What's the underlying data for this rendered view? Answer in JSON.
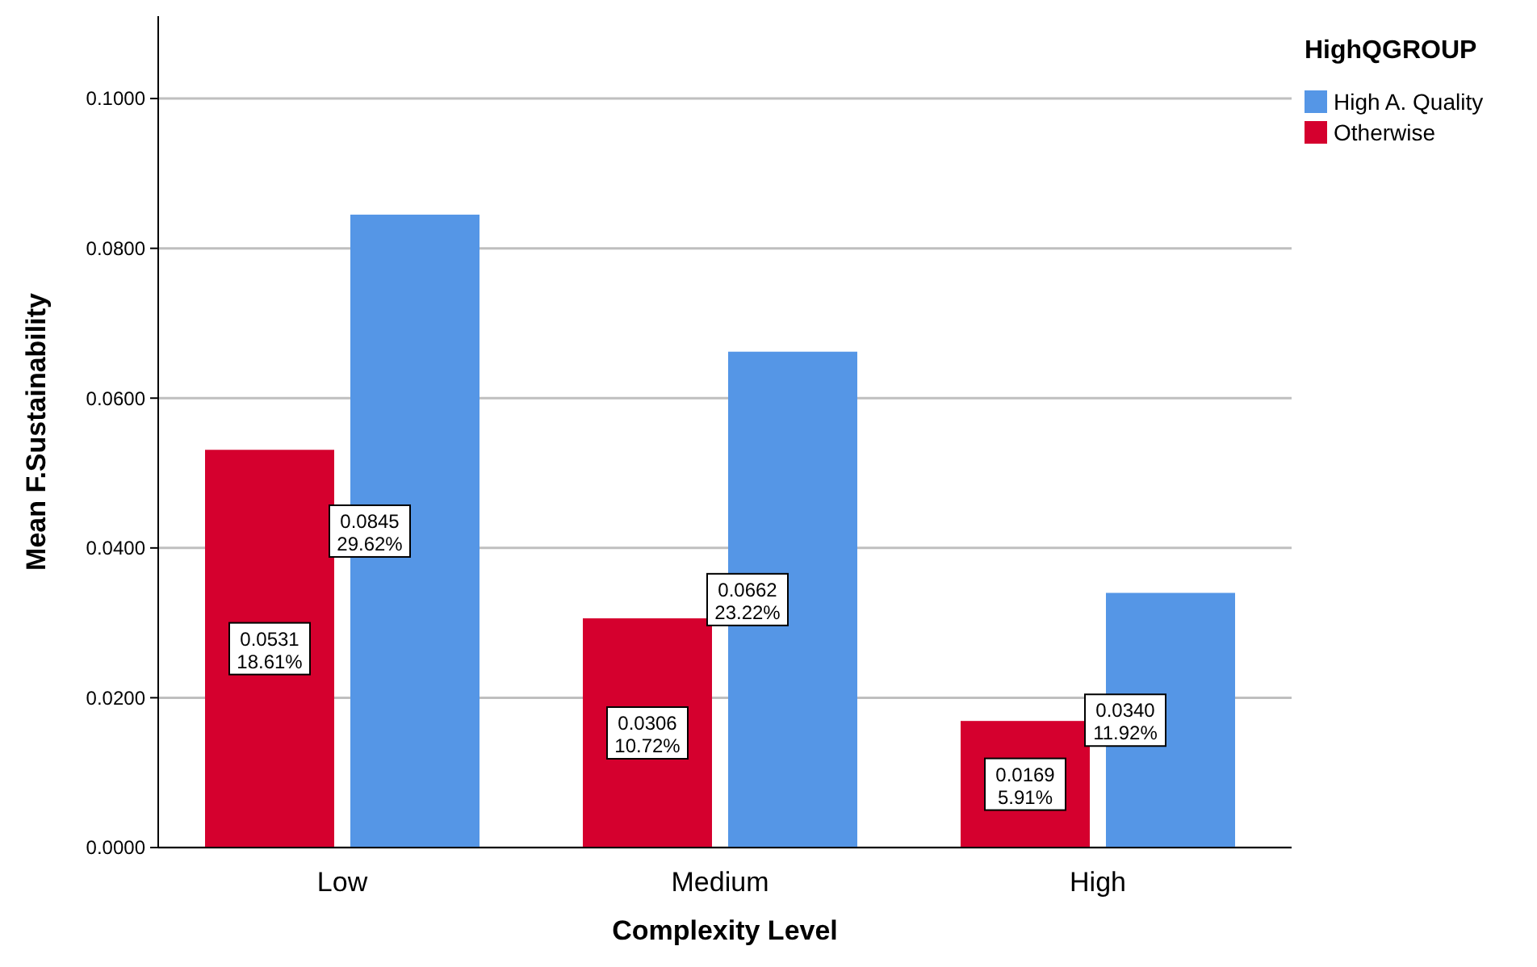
{
  "chart_data": {
    "type": "bar",
    "xlabel": "Complexity Level",
    "ylabel": "Mean F.Sustainability",
    "legend_title": "HighQGROUP",
    "legend": "right",
    "grid": "y",
    "categories": [
      "Low",
      "Medium",
      "High"
    ],
    "series": [
      {
        "name": "Otherwise",
        "color": "#d5002e",
        "values": [
          0.0531,
          0.0306,
          0.0169
        ],
        "value_labels": [
          "0.0531\n18.61%",
          "0.0306\n10.72%",
          "0.0169\n5.91%"
        ]
      },
      {
        "name": "High A. Quality",
        "color": "#5596e6",
        "values": [
          0.0845,
          0.0662,
          0.034
        ],
        "value_labels": [
          "0.0845\n29.62%",
          "0.0662\n23.22%",
          "0.0340\n11.92%"
        ]
      }
    ],
    "ylim": [
      0,
      0.111
    ],
    "yticks": [
      {
        "value": 0,
        "label": "0.0000"
      },
      {
        "value": 0.02,
        "label": "0.0200"
      },
      {
        "value": 0.04,
        "label": "0.0400"
      },
      {
        "value": 0.06,
        "label": "0.0600"
      },
      {
        "value": 0.08,
        "label": "0.0800"
      },
      {
        "value": 0.1,
        "label": "0.1000"
      }
    ]
  }
}
